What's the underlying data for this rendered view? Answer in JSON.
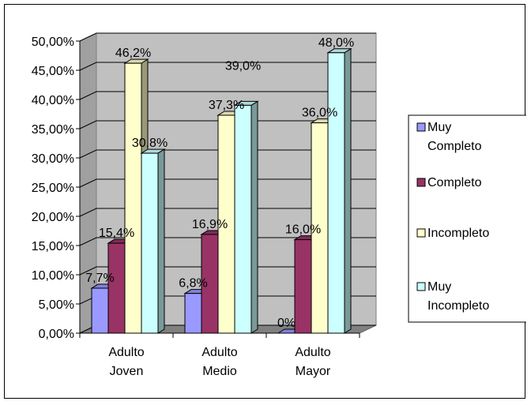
{
  "chart_data": {
    "type": "bar",
    "categories": [
      [
        "Adulto",
        "Joven"
      ],
      [
        "Adulto",
        "Medio"
      ],
      [
        "Adulto",
        "Mayor"
      ]
    ],
    "series": [
      {
        "name": [
          "Muy",
          "Completo"
        ],
        "color": "#9999ff",
        "values": [
          7.7,
          6.8,
          0
        ],
        "labels": [
          "7,7%",
          "6,8%",
          "0%"
        ]
      },
      {
        "name": [
          "Completo"
        ],
        "color": "#993366",
        "values": [
          15.4,
          16.9,
          16.0
        ],
        "labels": [
          "15,4%",
          "16,9%",
          "16,0%"
        ]
      },
      {
        "name": [
          "Incompleto"
        ],
        "color": "#ffffcc",
        "values": [
          46.2,
          37.3,
          36.0
        ],
        "labels": [
          "46,2%",
          "37,3%",
          "36,0%"
        ]
      },
      {
        "name": [
          "Muy",
          "Incompleto"
        ],
        "color": "#ccffff",
        "values": [
          30.8,
          39.0,
          48.0
        ],
        "labels": [
          "30,8%",
          "39,0%",
          "48,0%"
        ]
      }
    ],
    "yticks": [
      "0,00%",
      "5,00%",
      "10,00%",
      "15,00%",
      "20,00%",
      "25,00%",
      "30,00%",
      "35,00%",
      "40,00%",
      "45,00%",
      "50,00%"
    ],
    "ylim": [
      0,
      50
    ],
    "wall_color": "#c0c0c0",
    "grid": true,
    "legend": "right",
    "three_d": true
  }
}
